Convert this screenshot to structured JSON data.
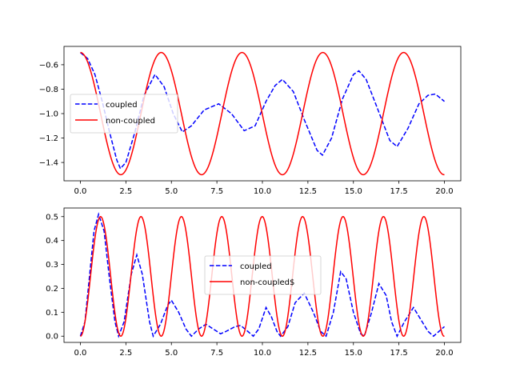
{
  "chart_data": [
    {
      "type": "line",
      "title": "",
      "xlabel": "",
      "ylabel": "",
      "xlim": [
        -0.9,
        20.9
      ],
      "ylim": [
        -1.55,
        -0.45
      ],
      "xticks": [
        0.0,
        2.5,
        5.0,
        7.5,
        10.0,
        12.5,
        15.0,
        17.5,
        20.0
      ],
      "xtick_labels": [
        "0.0",
        "2.5",
        "5.0",
        "7.5",
        "10.0",
        "12.5",
        "15.0",
        "17.5",
        "20.0"
      ],
      "yticks": [
        -0.6,
        -0.8,
        -1.0,
        -1.2,
        -1.4
      ],
      "ytick_labels": [
        "−0.6",
        "−0.8",
        "−1.0",
        "−1.2",
        "−1.4"
      ],
      "legend": {
        "location": "center-left",
        "entries": [
          "coupled",
          "non-coupled"
        ]
      },
      "series": [
        {
          "name": "coupled",
          "color": "#0000ff",
          "style": "dashed",
          "points": [
            [
              0.0,
              -0.5
            ],
            [
              0.4,
              -0.55
            ],
            [
              0.8,
              -0.68
            ],
            [
              1.2,
              -0.9
            ],
            [
              1.6,
              -1.15
            ],
            [
              2.0,
              -1.38
            ],
            [
              2.2,
              -1.45
            ],
            [
              2.5,
              -1.4
            ],
            [
              3.0,
              -1.15
            ],
            [
              3.5,
              -0.85
            ],
            [
              4.1,
              -0.68
            ],
            [
              4.6,
              -0.78
            ],
            [
              5.1,
              -1.0
            ],
            [
              5.6,
              -1.15
            ],
            [
              6.1,
              -1.1
            ],
            [
              6.8,
              -0.97
            ],
            [
              7.6,
              -0.92
            ],
            [
              8.3,
              -1.0
            ],
            [
              9.0,
              -1.14
            ],
            [
              9.6,
              -1.1
            ],
            [
              10.2,
              -0.9
            ],
            [
              10.7,
              -0.77
            ],
            [
              11.1,
              -0.72
            ],
            [
              11.7,
              -0.82
            ],
            [
              12.3,
              -1.05
            ],
            [
              13.0,
              -1.3
            ],
            [
              13.3,
              -1.34
            ],
            [
              13.8,
              -1.2
            ],
            [
              14.4,
              -0.88
            ],
            [
              15.0,
              -0.68
            ],
            [
              15.3,
              -0.65
            ],
            [
              15.7,
              -0.72
            ],
            [
              16.3,
              -0.95
            ],
            [
              17.0,
              -1.22
            ],
            [
              17.4,
              -1.27
            ],
            [
              18.0,
              -1.12
            ],
            [
              18.6,
              -0.92
            ],
            [
              19.1,
              -0.85
            ],
            [
              19.5,
              -0.84
            ],
            [
              20.0,
              -0.9
            ]
          ]
        },
        {
          "name": "non-coupled",
          "color": "#ff0000",
          "style": "solid",
          "amplitude": 0.5,
          "offset": -1.0,
          "period": 4.44
        }
      ]
    },
    {
      "type": "line",
      "title": "",
      "xlabel": "",
      "ylabel": "",
      "xlim": [
        -0.9,
        20.9
      ],
      "ylim": [
        -0.026,
        0.536
      ],
      "xticks": [
        0.0,
        2.5,
        5.0,
        7.5,
        10.0,
        12.5,
        15.0,
        17.5,
        20.0
      ],
      "xtick_labels": [
        "0.0",
        "2.5",
        "5.0",
        "7.5",
        "10.0",
        "12.5",
        "15.0",
        "17.5",
        "20.0"
      ],
      "yticks": [
        0.0,
        0.1,
        0.2,
        0.3,
        0.4,
        0.5
      ],
      "ytick_labels": [
        "0.0",
        "0.1",
        "0.2",
        "0.3",
        "0.4",
        "0.5"
      ],
      "legend": {
        "location": "center",
        "entries": [
          "coupled",
          "non-coupled$"
        ]
      },
      "series": [
        {
          "name": "coupled",
          "color": "#0000ff",
          "style": "dashed",
          "points": [
            [
              0.0,
              0.0
            ],
            [
              0.25,
              0.06
            ],
            [
              0.5,
              0.25
            ],
            [
              0.75,
              0.44
            ],
            [
              1.0,
              0.51
            ],
            [
              1.3,
              0.44
            ],
            [
              1.6,
              0.24
            ],
            [
              1.9,
              0.06
            ],
            [
              2.1,
              0.0
            ],
            [
              2.4,
              0.06
            ],
            [
              2.8,
              0.26
            ],
            [
              3.1,
              0.34
            ],
            [
              3.4,
              0.26
            ],
            [
              3.8,
              0.06
            ],
            [
              4.0,
              0.0
            ],
            [
              4.4,
              0.05
            ],
            [
              4.8,
              0.13
            ],
            [
              5.0,
              0.15
            ],
            [
              5.4,
              0.1
            ],
            [
              5.8,
              0.03
            ],
            [
              6.1,
              0.0
            ],
            [
              6.5,
              0.03
            ],
            [
              6.9,
              0.05
            ],
            [
              7.3,
              0.03
            ],
            [
              7.7,
              0.01
            ],
            [
              8.0,
              0.02
            ],
            [
              8.5,
              0.04
            ],
            [
              8.8,
              0.045
            ],
            [
              9.2,
              0.02
            ],
            [
              9.5,
              0.0
            ],
            [
              9.8,
              0.03
            ],
            [
              10.2,
              0.12
            ],
            [
              10.5,
              0.08
            ],
            [
              10.8,
              0.02
            ],
            [
              11.0,
              0.0
            ],
            [
              11.4,
              0.04
            ],
            [
              11.8,
              0.14
            ],
            [
              12.3,
              0.18
            ],
            [
              12.8,
              0.1
            ],
            [
              13.2,
              0.02
            ],
            [
              13.5,
              0.0
            ],
            [
              13.9,
              0.1
            ],
            [
              14.3,
              0.27
            ],
            [
              14.6,
              0.24
            ],
            [
              15.0,
              0.1
            ],
            [
              15.4,
              0.01
            ],
            [
              15.6,
              0.0
            ],
            [
              16.0,
              0.1
            ],
            [
              16.4,
              0.22
            ],
            [
              16.8,
              0.17
            ],
            [
              17.1,
              0.06
            ],
            [
              17.4,
              0.0
            ],
            [
              17.8,
              0.06
            ],
            [
              18.3,
              0.12
            ],
            [
              18.7,
              0.07
            ],
            [
              19.1,
              0.02
            ],
            [
              19.4,
              0.0
            ],
            [
              19.7,
              0.02
            ],
            [
              20.0,
              0.04
            ]
          ]
        },
        {
          "name": "non-coupled$",
          "color": "#ff0000",
          "style": "solid",
          "amplitude": 0.25,
          "offset": 0.25,
          "period": 2.22
        }
      ]
    }
  ]
}
